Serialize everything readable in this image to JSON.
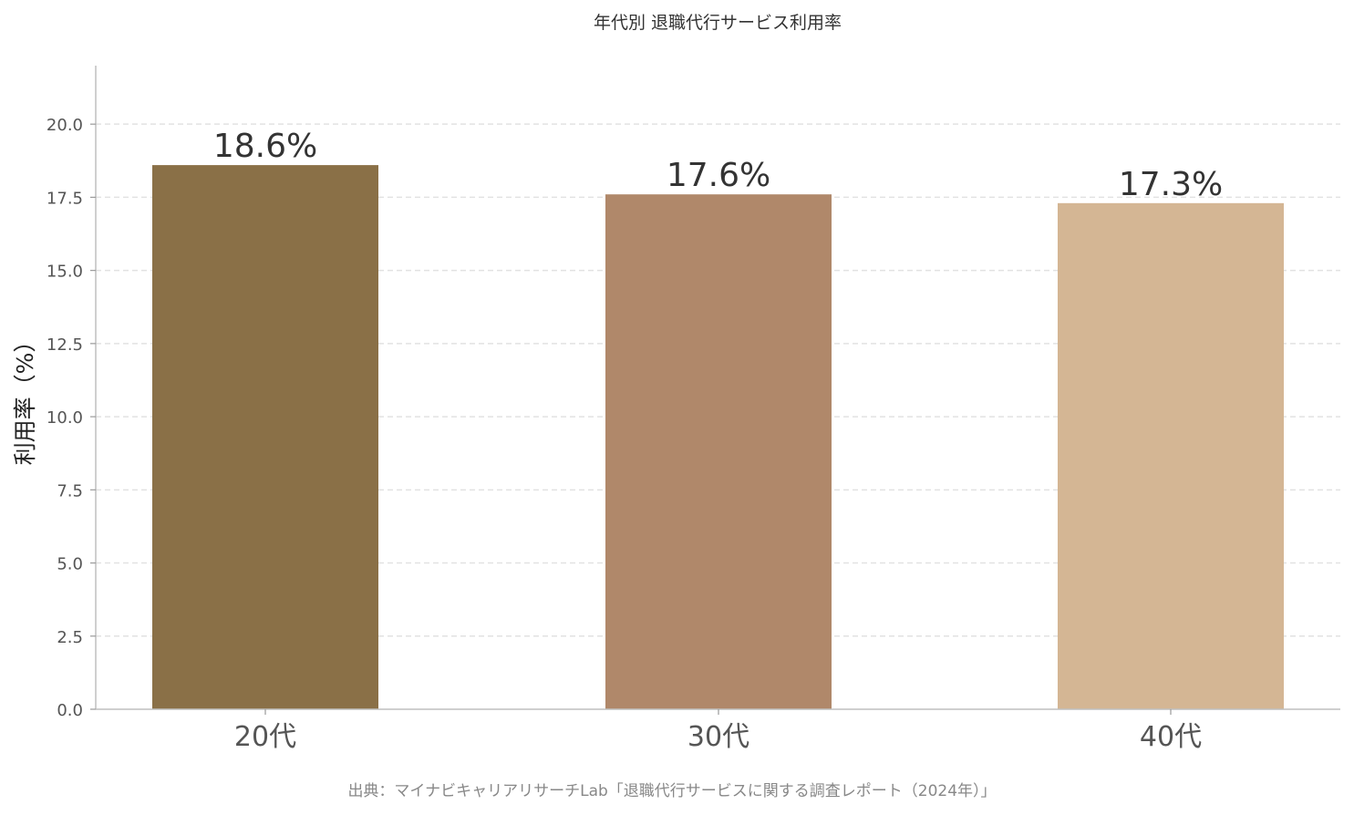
{
  "chart_data": {
    "type": "bar",
    "title": "年代別 退職代行サービス利用率",
    "xlabel": "",
    "ylabel": "利用率（%）",
    "categories": [
      "20代",
      "30代",
      "40代"
    ],
    "values": [
      18.6,
      17.6,
      17.3
    ],
    "value_labels": [
      "18.6%",
      "17.6%",
      "17.3%"
    ],
    "colors": [
      "#8a7047",
      "#b0886a",
      "#d4b694"
    ],
    "ylim": [
      0,
      22
    ],
    "yticks": [
      0,
      2.5,
      5,
      7.5,
      10,
      12.5,
      15,
      17.5,
      20
    ],
    "ytick_labels": [
      "0.0",
      "2.5",
      "5.0",
      "7.5",
      "10.0",
      "12.5",
      "15.0",
      "17.5",
      "20.0"
    ],
    "grid": true,
    "legend": "none",
    "source": "出典：マイナビキャリアリサーチLab「退職代行サービスに関する調査レポート（2024年）」"
  }
}
